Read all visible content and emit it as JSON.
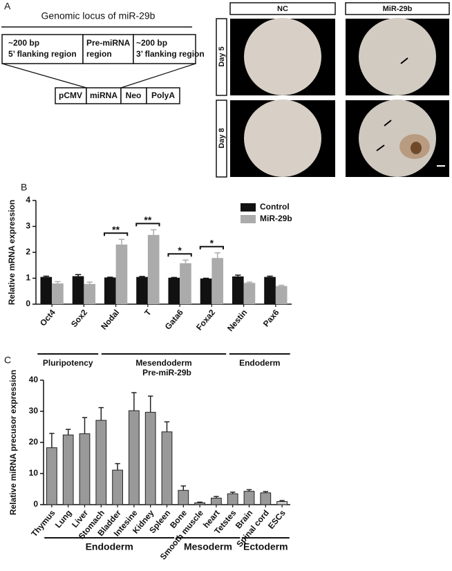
{
  "panel_a": {
    "label": "A",
    "title": "Genomic locus of miR-29b",
    "locus": [
      [
        "~200 bp",
        "5’ flanking region"
      ],
      [
        "Pre-miRNA",
        "region"
      ],
      [
        "~200 bp",
        "3’ flanking region"
      ]
    ],
    "construct": [
      "pCMV",
      "miRNA",
      "Neo",
      "PolyA"
    ],
    "columns": [
      "NC",
      "MiR-29b"
    ],
    "rows": [
      "Day 5",
      "Day 8"
    ]
  },
  "chart_data": [
    {
      "type": "bar",
      "panel": "B",
      "y_label": "Relative mRNA expression",
      "categories": [
        "Oct4",
        "Sox2",
        "Nodal",
        "T",
        "Gata6",
        "Foxa2",
        "Nestin",
        "Pax6"
      ],
      "series": [
        {
          "name": "Control",
          "color": "#111111",
          "values": [
            1.05,
            1.08,
            1.03,
            1.05,
            1.02,
            0.99,
            1.07,
            1.05
          ],
          "errors": [
            0.03,
            0.06,
            0.01,
            0.02,
            0.01,
            0.01,
            0.05,
            0.03
          ]
        },
        {
          "name": "MiR-29b",
          "color": "#ababab",
          "values": [
            0.8,
            0.78,
            2.3,
            2.67,
            1.58,
            1.78,
            0.82,
            0.7
          ],
          "errors": [
            0.07,
            0.07,
            0.2,
            0.2,
            0.12,
            0.2,
            0.03,
            0.03
          ]
        }
      ],
      "ylim": [
        0,
        4
      ],
      "yticks": [
        0,
        1,
        2,
        3,
        4
      ],
      "annotations": [
        {
          "text": "**",
          "category": "Nodal"
        },
        {
          "text": "**",
          "category": "T"
        },
        {
          "text": "*",
          "category": "Gata6"
        },
        {
          "text": "*",
          "category": "Foxa2"
        }
      ],
      "groups": [
        {
          "label": "Pluripotency",
          "categories": [
            "Oct4",
            "Sox2"
          ]
        },
        {
          "label": "Mesendoderm",
          "categories": [
            "Nodal",
            "T",
            "Gata6",
            "Foxa2"
          ]
        },
        {
          "label": "Endoderm",
          "categories": [
            "Nestin",
            "Pax6"
          ]
        }
      ]
    },
    {
      "type": "bar",
      "panel": "C",
      "title": "Pre-miR-29b",
      "y_label": "Relative miRNA precusor expression",
      "categories": [
        "Thymus",
        "Lung",
        "Liver",
        "Stomach",
        "Bladder",
        "Intesine",
        "Kidney",
        "Spleen",
        "Bone",
        "Smooth muscle",
        "heart",
        "Tetstes",
        "Brain",
        "Spinal cord",
        "ESCs"
      ],
      "series": [
        {
          "colors": [
            "#999999",
            "#999999",
            "#999999",
            "#999999",
            "#999999",
            "#999999",
            "#999999",
            "#999999",
            "#999999",
            "#999999",
            "#999999",
            "#999999",
            "#999999",
            "#999999",
            "#cccccc"
          ],
          "values": [
            18.3,
            22.4,
            22.8,
            27.1,
            11.1,
            30.2,
            29.7,
            23.4,
            4.6,
            0.6,
            2.1,
            3.5,
            4.3,
            3.8,
            1.0
          ],
          "errors": [
            4.6,
            1.8,
            5.2,
            4.1,
            2.1,
            5.8,
            5.2,
            3.2,
            1.4,
            0.2,
            0.5,
            0.5,
            0.5,
            0.4,
            0.3
          ]
        }
      ],
      "ylim": [
        0,
        40
      ],
      "yticks": [
        0,
        10,
        20,
        30,
        40
      ],
      "groups": [
        {
          "label": "Endoderm",
          "categories": [
            "Thymus",
            "Lung",
            "Liver",
            "Stomach",
            "Bladder",
            "Intesine",
            "Kidney",
            "Spleen"
          ]
        },
        {
          "label": "Mesoderm",
          "categories": [
            "Bone",
            "Smooth muscle",
            "heart",
            "Tetstes"
          ]
        },
        {
          "label": "Ectoderm",
          "categories": [
            "Brain",
            "Spinal cord",
            "ESCs"
          ]
        }
      ]
    }
  ]
}
